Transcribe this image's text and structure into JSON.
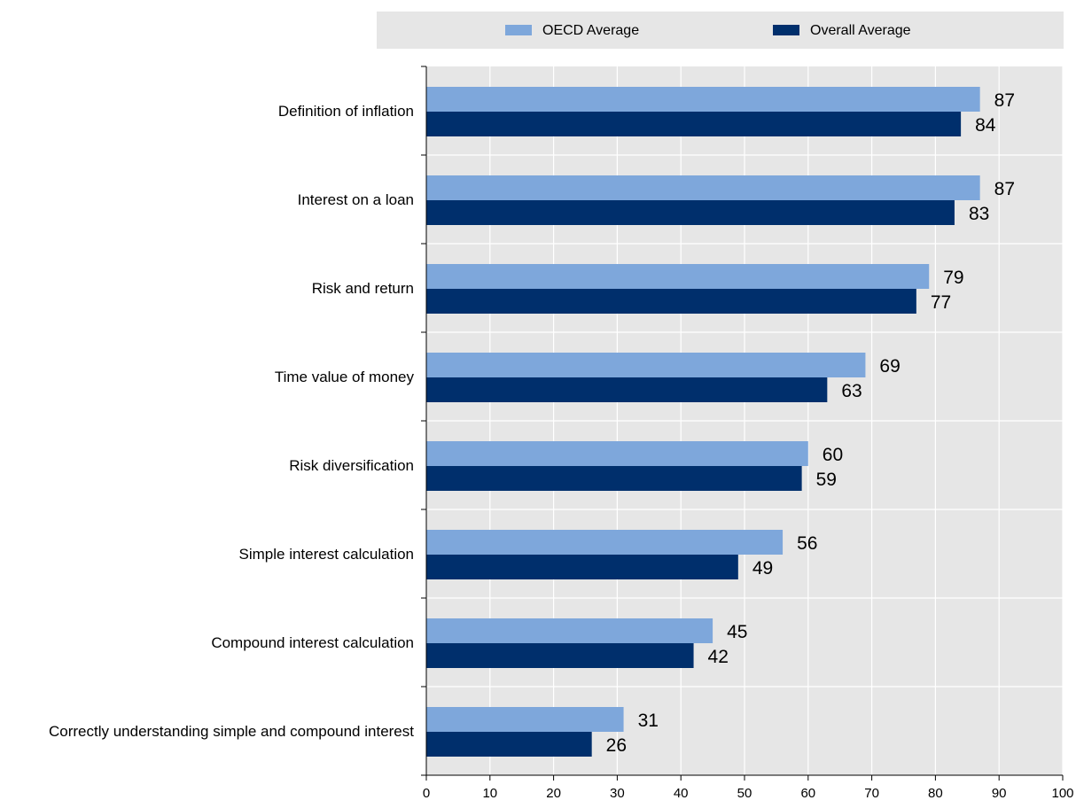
{
  "chart_data": {
    "type": "bar",
    "orientation": "horizontal",
    "title": "",
    "xlabel": "",
    "ylabel": "",
    "xlim": [
      0,
      100
    ],
    "x_ticks": [
      0,
      10,
      20,
      30,
      40,
      50,
      60,
      70,
      80,
      90,
      100
    ],
    "grid": "vertical",
    "legend_position": "top",
    "categories": [
      "Definition of inflation",
      "Interest on a loan",
      "Risk and return",
      "Time value of money",
      "Risk diversification",
      "Simple interest calculation",
      "Compound interest calculation",
      "Correctly understanding simple and compound interest"
    ],
    "series": [
      {
        "name": "OECD Average",
        "color": "#7ea7db",
        "values": [
          87,
          87,
          79,
          69,
          60,
          56,
          45,
          31
        ]
      },
      {
        "name": "Overall Average",
        "color": "#002f6c",
        "values": [
          84,
          83,
          77,
          63,
          59,
          49,
          42,
          26
        ]
      }
    ]
  },
  "colors": {
    "plot_background": "#e6e6e6",
    "legend_background": "#e6e6e6",
    "gridline": "#ffffff",
    "axis": "#000000",
    "text": "#000000"
  }
}
